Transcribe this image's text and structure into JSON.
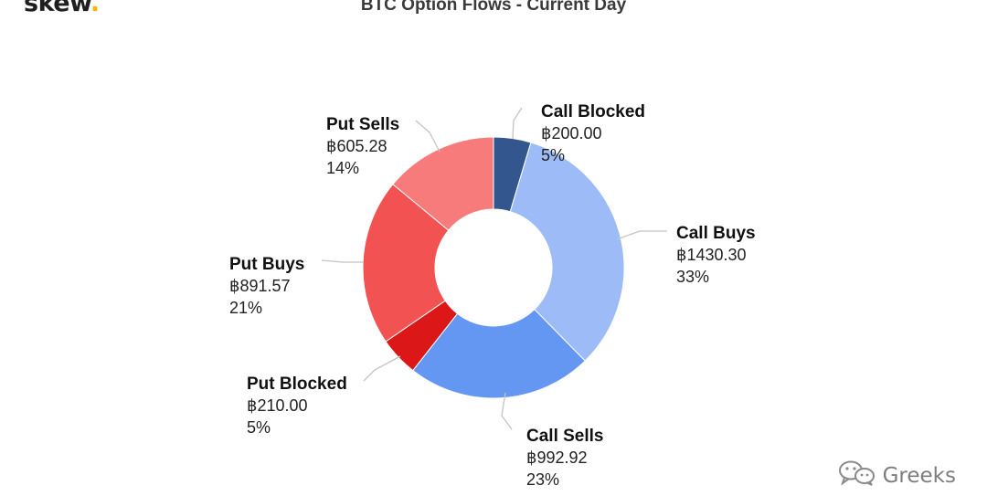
{
  "brand": {
    "name": "skew",
    "dot": "."
  },
  "watermark": {
    "text": "Greeks",
    "icon": "wechat-icon"
  },
  "chart_data": {
    "type": "pie",
    "donut": true,
    "title": "BTC Option Flows - Current Day",
    "currency": "฿",
    "slices": [
      {
        "name": "Call Blocked",
        "value": 200.0,
        "value_label": "฿200.00",
        "percent_label": "5%",
        "color": "#34568f"
      },
      {
        "name": "Call Buys",
        "value": 1430.3,
        "value_label": "฿1430.30",
        "percent_label": "33%",
        "color": "#9dbcf7"
      },
      {
        "name": "Call Sells",
        "value": 992.92,
        "value_label": "฿992.92",
        "percent_label": "23%",
        "color": "#6497f2"
      },
      {
        "name": "Put Blocked",
        "value": 210.0,
        "value_label": "฿210.00",
        "percent_label": "5%",
        "color": "#dc1717"
      },
      {
        "name": "Put Buys",
        "value": 891.57,
        "value_label": "฿891.57",
        "percent_label": "21%",
        "color": "#f25252"
      },
      {
        "name": "Put Sells",
        "value": 605.28,
        "value_label": "฿605.28",
        "percent_label": "14%",
        "color": "#f77b7b"
      }
    ]
  }
}
